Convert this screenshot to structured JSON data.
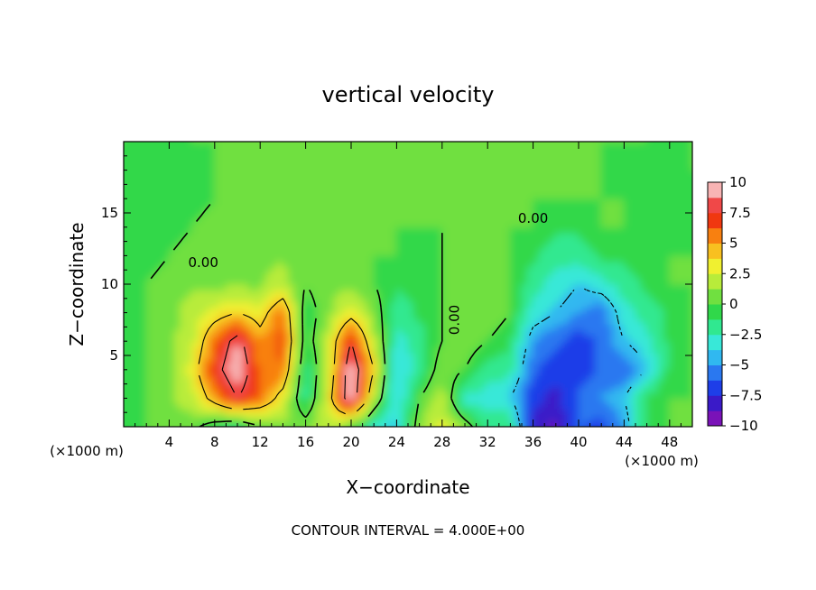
{
  "chart_data": {
    "type": "heatmap",
    "title": "vertical velocity",
    "xlabel": "X−coordinate",
    "ylabel": "Z−coordinate",
    "x_unit_left": "(×1000 m)",
    "x_unit_right": "(×1000 m)",
    "footer": "CONTOUR INTERVAL = 4.000E+00",
    "xlim": [
      0,
      50
    ],
    "ylim": [
      0,
      20
    ],
    "x_ticks": [
      4,
      8,
      12,
      16,
      20,
      24,
      28,
      32,
      36,
      40,
      44,
      48
    ],
    "x_tick_labels": [
      "4",
      "8",
      "12",
      "16",
      "20",
      "24",
      "28",
      "32",
      "36",
      "40",
      "44",
      "48"
    ],
    "y_ticks": [
      5,
      10,
      15
    ],
    "y_tick_labels": [
      "5",
      "10",
      "15"
    ],
    "contour_labels": [
      {
        "text": "0.00",
        "x": 7.0,
        "y": 11.2
      },
      {
        "text": "0.00",
        "x": 29.5,
        "y": 7.5
      },
      {
        "text": "0.00",
        "x": 36.0,
        "y": 14.3
      }
    ],
    "colorbar": {
      "range": [
        -10,
        10
      ],
      "tick_labels": [
        "10",
        "7.5",
        "5",
        "2.5",
        "0",
        "−2.5",
        "−5",
        "−7.5",
        "−10"
      ],
      "tick_values": [
        10,
        7.5,
        5,
        2.5,
        0,
        -2.5,
        -5,
        -7.5,
        -10
      ],
      "colors": [
        "#7a12b8",
        "#3a1ac8",
        "#1e3ee8",
        "#2a78f0",
        "#30b8f0",
        "#38e8d8",
        "#30e890",
        "#30d84a",
        "#70e040",
        "#b8ec3a",
        "#f0f030",
        "#f8c020",
        "#f88010",
        "#f03810",
        "#f04848",
        "#f8b4b4"
      ]
    },
    "field": [
      [
        -0.5,
        0,
        0.5,
        0.5,
        -1,
        -2,
        0,
        1,
        1,
        2,
        0,
        -3,
        -4,
        1,
        3,
        1,
        -2,
        -1,
        -8,
        -9,
        -6,
        -7,
        -5,
        -1,
        0,
        0
      ],
      [
        -0.5,
        0,
        1,
        2,
        5,
        8,
        6,
        3,
        -2,
        3,
        10,
        2,
        -4,
        0,
        2,
        -3,
        -3,
        -4,
        -7,
        -8,
        -6,
        -5,
        -4,
        -1,
        0,
        0
      ],
      [
        -0.5,
        0,
        1,
        3,
        7,
        10,
        6,
        6,
        -2,
        2,
        10,
        4,
        -4,
        -2,
        1,
        0,
        -2,
        -2,
        -6,
        -7,
        -7,
        -6,
        -6,
        -4,
        -1,
        0
      ],
      [
        -0.5,
        0,
        1,
        2,
        6,
        9,
        5,
        7,
        -1,
        2,
        8,
        2,
        -3,
        -2,
        0,
        1,
        0,
        -1,
        -5,
        -6,
        -7,
        -6,
        -4,
        -3,
        -1,
        0
      ],
      [
        -1,
        0,
        0.5,
        2,
        3,
        4,
        3,
        6,
        -1,
        1,
        3,
        1,
        -2,
        -1,
        0,
        1,
        1,
        0,
        -3,
        -4,
        -5,
        -6,
        -3,
        -2,
        -1,
        0
      ],
      [
        -1,
        0,
        0.5,
        1,
        1,
        1,
        1,
        2,
        0,
        1,
        1,
        0,
        -1,
        -1,
        0,
        1,
        1,
        0,
        -2,
        -3,
        -4,
        -3,
        -2,
        -1,
        0,
        0
      ],
      [
        -1,
        -0.5,
        0,
        0.5,
        1,
        1,
        1,
        1,
        0,
        1,
        1,
        0,
        0,
        -1,
        0,
        0.5,
        1,
        0,
        -1,
        -2,
        -2,
        -1,
        -1,
        0,
        0,
        0
      ],
      [
        -1,
        -1,
        -0.5,
        0,
        0.5,
        1,
        1,
        0.5,
        0.5,
        1,
        1,
        0.5,
        0,
        0,
        0,
        0.5,
        0.5,
        0,
        0,
        -1,
        -1,
        0,
        0,
        0,
        -1,
        -1
      ],
      [
        -1,
        -1,
        -1,
        -0.5,
        0,
        0.5,
        1,
        1,
        1,
        1,
        1,
        0.5,
        0,
        0,
        0.5,
        0.5,
        0.5,
        0.5,
        0,
        0,
        0,
        0,
        0,
        -1,
        -1,
        -1
      ],
      [
        -0.5,
        -1,
        -1,
        -0.5,
        0,
        0.5,
        0.5,
        1,
        1,
        1,
        0.5,
        0.5,
        0,
        0,
        0.5,
        1,
        0.5,
        0.5,
        0,
        0,
        0,
        0,
        -1,
        0,
        0,
        0
      ],
      [
        0,
        -0.5,
        -0.5,
        0,
        0,
        0.5,
        0.5,
        0.5,
        0.5,
        1,
        1,
        0.5,
        0.5,
        0.5,
        0.5,
        1,
        0.5,
        0,
        0,
        0,
        0,
        0,
        0,
        0,
        -0.5,
        0
      ]
    ]
  }
}
